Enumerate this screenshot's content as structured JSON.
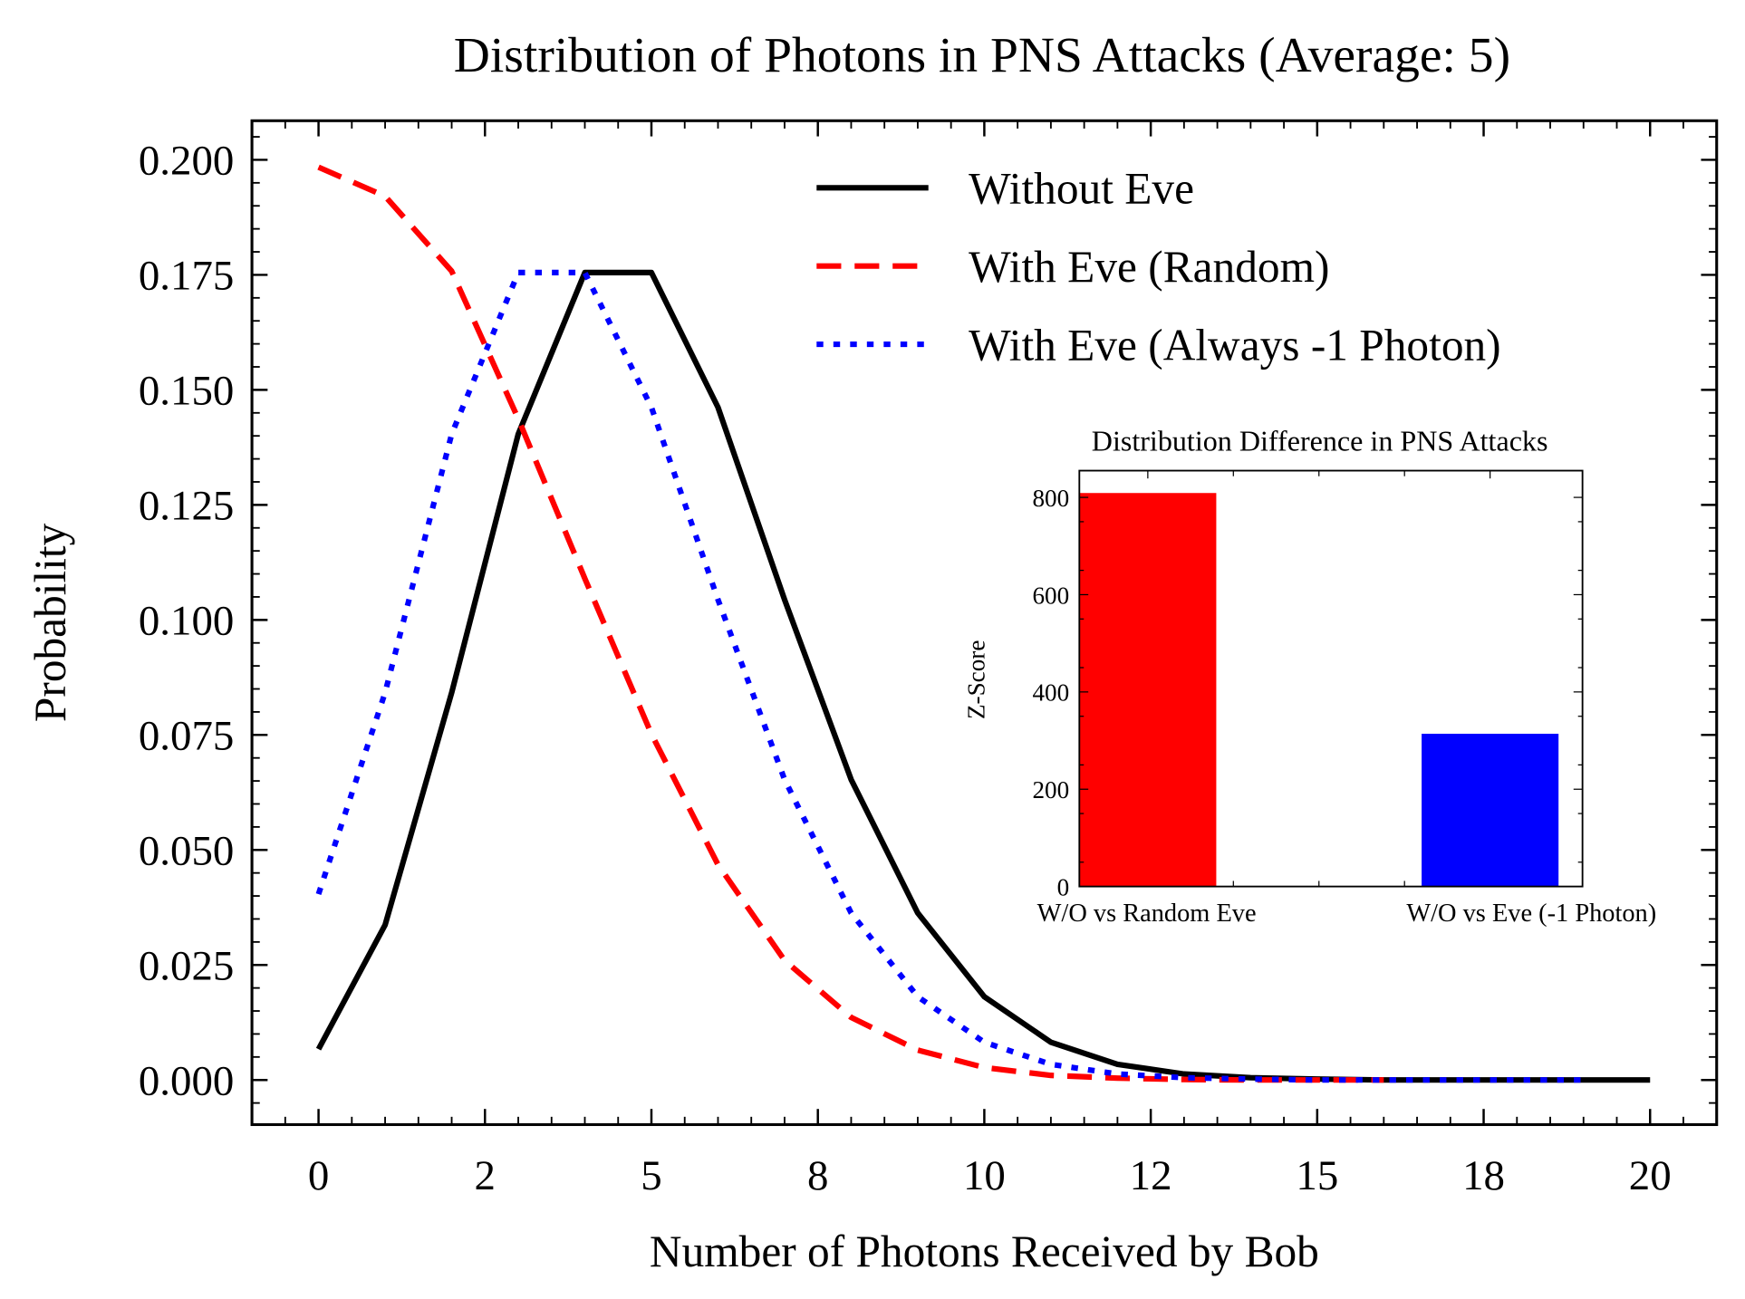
{
  "chart_data": [
    {
      "type": "line",
      "title": "Distribution of Photons in PNS Attacks (Average: 5)",
      "xlabel": "Number of Photons Received by Bob",
      "ylabel": "Probability",
      "xlim": [
        -1.0,
        21.0
      ],
      "ylim": [
        -0.0097,
        0.2085
      ],
      "xticks": [
        0,
        2.5,
        5,
        7.5,
        10,
        12.5,
        15,
        17.5,
        20
      ],
      "xtick_labels": [
        "0",
        "2",
        "5",
        "8",
        "10",
        "12",
        "15",
        "18",
        "20"
      ],
      "yticks": [
        0,
        0.025,
        0.05,
        0.075,
        0.1,
        0.125,
        0.15,
        0.175,
        0.2
      ],
      "ytick_labels": [
        "0.000",
        "0.025",
        "0.050",
        "0.075",
        "0.100",
        "0.125",
        "0.150",
        "0.175",
        "0.200"
      ],
      "grid": false,
      "legend_position": "top-right",
      "series": [
        {
          "name": "Without Eve",
          "color": "#000000",
          "style": "solid",
          "x": [
            0,
            1,
            2,
            3,
            4,
            5,
            6,
            7,
            8,
            9,
            10,
            11,
            12,
            13,
            14,
            15,
            16,
            17,
            18,
            19,
            20
          ],
          "y": [
            0.0067,
            0.0337,
            0.0842,
            0.1404,
            0.1755,
            0.1755,
            0.1462,
            0.1044,
            0.0653,
            0.0363,
            0.0181,
            0.0082,
            0.0034,
            0.0013,
            0.0005,
            0.0002,
            0.0,
            0.0,
            0.0,
            0.0,
            0.0
          ]
        },
        {
          "name": "With Eve (Random)",
          "color": "#ff0000",
          "style": "dashed",
          "x": [
            0,
            1,
            2,
            3,
            4,
            5,
            6,
            7,
            8,
            9,
            10,
            11,
            12,
            13,
            14,
            15,
            16
          ],
          "y": [
            0.1984,
            0.1921,
            0.1758,
            0.1437,
            0.109,
            0.0752,
            0.0468,
            0.026,
            0.0136,
            0.0065,
            0.0027,
            0.001,
            0.0004,
            0.0001,
            0.0,
            0.0,
            0.0
          ]
        },
        {
          "name": "With Eve (Always -1 Photon)",
          "color": "#0000ff",
          "style": "dotted",
          "x": [
            0,
            1,
            2,
            3,
            4,
            5,
            6,
            7,
            8,
            9,
            10,
            11,
            12,
            13,
            14,
            15,
            16,
            17,
            18,
            19
          ],
          "y": [
            0.0404,
            0.0842,
            0.1404,
            0.1755,
            0.1755,
            0.1462,
            0.1044,
            0.0653,
            0.0363,
            0.0181,
            0.0082,
            0.0034,
            0.0013,
            0.0005,
            0.0002,
            0.0,
            0.0,
            0.0,
            0.0,
            0.0
          ]
        }
      ]
    },
    {
      "type": "bar",
      "title": "Distribution Difference in PNS Attacks",
      "xlabel": "",
      "ylabel": "Z-Score",
      "categories": [
        "W/O vs Random Eve",
        "W/O vs Eve (-1 Photon)"
      ],
      "values": [
        809,
        314
      ],
      "colors": [
        "#ff0000",
        "#0000ff"
      ],
      "ylim": [
        0,
        855
      ],
      "yticks": [
        0,
        200,
        400,
        600,
        800
      ],
      "ytick_labels": [
        "0",
        "200",
        "400",
        "600",
        "800"
      ],
      "grid": false
    }
  ]
}
